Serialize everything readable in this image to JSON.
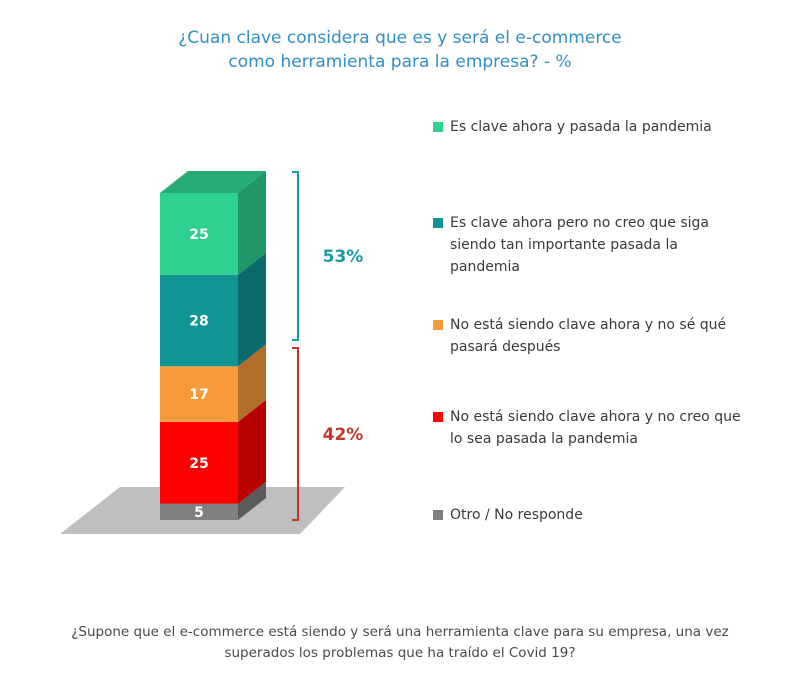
{
  "title_line1": "¿Cuan clave considera que es y será el e-commerce",
  "title_line2": "como herramienta para la empresa? - %",
  "footer_line1": "¿Supone que el e-commerce está siendo y será una herramienta clave para su empresa, una vez",
  "footer_line2": "superados los problemas que ha traído el Covid 19?",
  "chart_data": {
    "type": "bar",
    "stacked": true,
    "unit": "%",
    "series": [
      {
        "name": "Otro / No responde",
        "value": 5,
        "color": "#7f7f7f"
      },
      {
        "name": "No está siendo clave ahora y no creo que lo sea pasada la pandemia",
        "value": 25,
        "color": "#ff0000"
      },
      {
        "name": "No está siendo clave ahora y no sé qué pasará después",
        "value": 17,
        "color": "#f79a3a"
      },
      {
        "name": "Es clave ahora pero no creo que siga siendo tan importante pasada la pandemia",
        "value": 28,
        "color": "#0f9596"
      },
      {
        "name": "Es clave ahora y pasada la pandemia",
        "value": 25,
        "color": "#2ed18e"
      }
    ],
    "brackets": [
      {
        "label": "53%",
        "color": "#1b9aa0"
      },
      {
        "label": "42%",
        "color": "#c0392b"
      }
    ]
  },
  "legend": [
    {
      "lines": [
        "Es clave ahora y pasada la pandemia"
      ],
      "color": "#2ed18e"
    },
    {
      "lines": [
        "Es clave ahora pero no creo que siga",
        "siendo tan importante pasada la",
        "pandemia"
      ],
      "color": "#0f9596"
    },
    {
      "lines": [
        "No está siendo clave ahora y no sé qué",
        "pasará después"
      ],
      "color": "#f79a3a"
    },
    {
      "lines": [
        "No está siendo clave ahora y no creo que",
        "lo sea pasada la pandemia"
      ],
      "color": "#ff0000"
    },
    {
      "lines": [
        "Otro / No responde"
      ],
      "color": "#7f7f7f"
    }
  ]
}
